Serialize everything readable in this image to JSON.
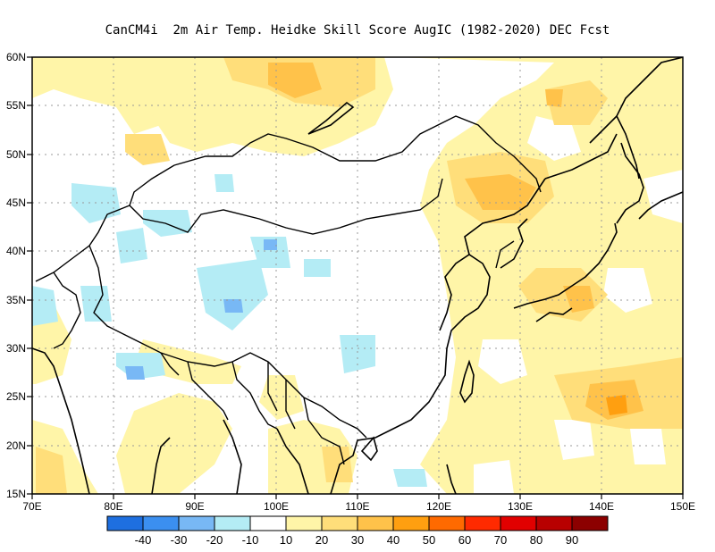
{
  "title": "CanCM4i  2m Air Temp. Heidke Skill Score AugIC (1982-2020) DEC Fcst",
  "map": {
    "lon_range": [
      70,
      150
    ],
    "lat_range": [
      15,
      60
    ],
    "lon_ticks": [
      "70E",
      "80E",
      "90E",
      "100E",
      "110E",
      "120E",
      "130E",
      "140E",
      "150E"
    ],
    "lat_ticks": [
      "15N",
      "20N",
      "25N",
      "30N",
      "35N",
      "40N",
      "45N",
      "50N",
      "55N",
      "60N"
    ],
    "grid": "dotted, every 10 degrees"
  },
  "colorbar": {
    "colors": [
      "#1e6fe0",
      "#3b8ff0",
      "#78b8f5",
      "#b4ecf5",
      "#ffffff",
      "#fff5a8",
      "#ffde7a",
      "#ffc24a",
      "#ff9f10",
      "#ff6a00",
      "#ff2a00",
      "#e10000",
      "#b80000",
      "#8c0000"
    ],
    "labels": [
      "-40",
      "-30",
      "-20",
      "-10",
      "10",
      "20",
      "30",
      "40",
      "50",
      "60",
      "70",
      "80",
      "90"
    ]
  }
}
